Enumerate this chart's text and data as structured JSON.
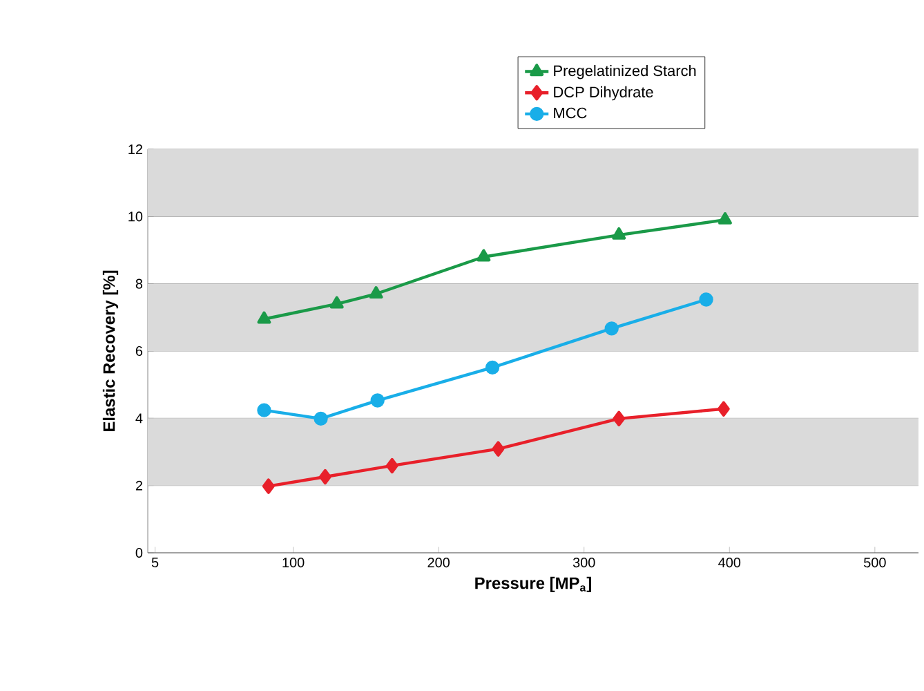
{
  "chart_data": {
    "type": "line",
    "xlabel": "Pressure [MP$_{a}$]",
    "ylabel": "Elastic Recovery [%]",
    "xlim": [
      0,
      530
    ],
    "ylim": [
      0,
      12
    ],
    "xticks": [
      5,
      100,
      200,
      300,
      400,
      500
    ],
    "grid": "y",
    "yticks": [
      0,
      2,
      4,
      6,
      8,
      10,
      12
    ],
    "legend": "top right",
    "line_style": "solid",
    "bands": [
      {
        "axis": "y",
        "from": 2,
        "to": 4,
        "color": "#dadada"
      },
      {
        "axis": "y",
        "from": 6,
        "to": 8,
        "color": "#dadada"
      },
      {
        "axis": "y",
        "from": 10,
        "to": 12,
        "color": "#dadada"
      }
    ],
    "series": [
      {
        "name": "Pregelatinized Starch",
        "color": "#1a9a48",
        "marker": "triangle",
        "x": [
          80,
          130,
          157,
          231,
          324,
          397
        ],
        "values": [
          6.95,
          7.4,
          7.7,
          8.8,
          9.45,
          9.9
        ]
      },
      {
        "name": "DCP Dihydrate",
        "color": "#e8202a",
        "marker": "diamond",
        "x": [
          83,
          122,
          168,
          241,
          324,
          396
        ],
        "values": [
          1.98,
          2.26,
          2.59,
          3.09,
          3.99,
          4.28
        ]
      },
      {
        "name": "MCC",
        "color": "#19aee8",
        "marker": "circle",
        "x": [
          80,
          119,
          158,
          237,
          319,
          384
        ],
        "values": [
          4.24,
          3.99,
          4.53,
          5.51,
          6.67,
          7.53
        ]
      }
    ]
  }
}
